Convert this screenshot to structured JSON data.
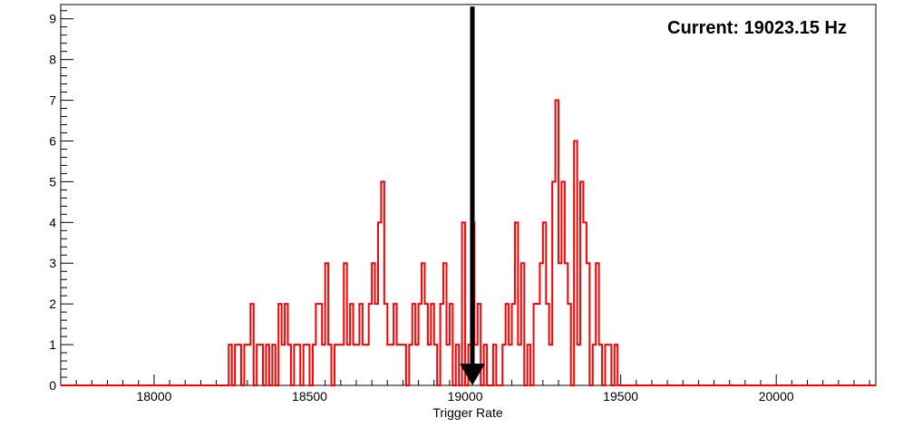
{
  "chart_data": {
    "type": "histogram",
    "title": "",
    "xlabel": "Trigger Rate",
    "ylabel": "",
    "xlim": [
      17700,
      20320
    ],
    "ylim": [
      0,
      9.35
    ],
    "grid": false,
    "legend": "none",
    "x_ticks": [
      18000,
      18500,
      19000,
      19500,
      20000
    ],
    "y_ticks": [
      0,
      1,
      2,
      3,
      4,
      5,
      6,
      7,
      8,
      9
    ],
    "x_minor_step": 50,
    "y_minor_step": 0.2,
    "bin_width": 10,
    "series": [
      {
        "color": "#ff0000",
        "bins": [
          [
            18240,
            1
          ],
          [
            18250,
            0
          ],
          [
            18260,
            1
          ],
          [
            18270,
            1
          ],
          [
            18280,
            0
          ],
          [
            18290,
            1
          ],
          [
            18300,
            1
          ],
          [
            18310,
            2
          ],
          [
            18320,
            0
          ],
          [
            18330,
            1
          ],
          [
            18340,
            1
          ],
          [
            18350,
            0
          ],
          [
            18360,
            1
          ],
          [
            18370,
            0
          ],
          [
            18380,
            1
          ],
          [
            18390,
            0
          ],
          [
            18400,
            2
          ],
          [
            18410,
            1
          ],
          [
            18420,
            2
          ],
          [
            18430,
            1
          ],
          [
            18440,
            0
          ],
          [
            18450,
            1
          ],
          [
            18460,
            1
          ],
          [
            18470,
            0
          ],
          [
            18480,
            1
          ],
          [
            18490,
            1
          ],
          [
            18500,
            0
          ],
          [
            18510,
            1
          ],
          [
            18520,
            2
          ],
          [
            18530,
            2
          ],
          [
            18540,
            1
          ],
          [
            18550,
            3
          ],
          [
            18560,
            1
          ],
          [
            18570,
            0
          ],
          [
            18580,
            1
          ],
          [
            18590,
            1
          ],
          [
            18600,
            1
          ],
          [
            18610,
            3
          ],
          [
            18620,
            1
          ],
          [
            18630,
            2
          ],
          [
            18640,
            1
          ],
          [
            18650,
            1
          ],
          [
            18660,
            2
          ],
          [
            18670,
            1
          ],
          [
            18680,
            1
          ],
          [
            18690,
            2
          ],
          [
            18700,
            3
          ],
          [
            18710,
            2
          ],
          [
            18720,
            4
          ],
          [
            18730,
            5
          ],
          [
            18740,
            2
          ],
          [
            18750,
            1
          ],
          [
            18760,
            1
          ],
          [
            18770,
            2
          ],
          [
            18780,
            1
          ],
          [
            18790,
            1
          ],
          [
            18800,
            1
          ],
          [
            18810,
            0
          ],
          [
            18820,
            1
          ],
          [
            18830,
            2
          ],
          [
            18840,
            1
          ],
          [
            18850,
            2
          ],
          [
            18860,
            3
          ],
          [
            18870,
            2
          ],
          [
            18880,
            1
          ],
          [
            18890,
            2
          ],
          [
            18900,
            1
          ],
          [
            18910,
            0
          ],
          [
            18920,
            2
          ],
          [
            18930,
            3
          ],
          [
            18940,
            1
          ],
          [
            18950,
            2
          ],
          [
            18960,
            0
          ],
          [
            18970,
            1
          ],
          [
            18980,
            0
          ],
          [
            18990,
            4
          ],
          [
            19000,
            0
          ],
          [
            19010,
            1
          ],
          [
            19020,
            4
          ],
          [
            19030,
            1
          ],
          [
            19040,
            2
          ],
          [
            19050,
            0
          ],
          [
            19060,
            1
          ],
          [
            19070,
            0
          ],
          [
            19080,
            0
          ],
          [
            19090,
            1
          ],
          [
            19100,
            0
          ],
          [
            19110,
            0
          ],
          [
            19120,
            1
          ],
          [
            19130,
            2
          ],
          [
            19140,
            1
          ],
          [
            19150,
            2
          ],
          [
            19160,
            4
          ],
          [
            19170,
            1
          ],
          [
            19180,
            3
          ],
          [
            19190,
            0
          ],
          [
            19200,
            1
          ],
          [
            19210,
            0
          ],
          [
            19220,
            2
          ],
          [
            19230,
            2
          ],
          [
            19240,
            3
          ],
          [
            19250,
            4
          ],
          [
            19260,
            2
          ],
          [
            19270,
            1
          ],
          [
            19280,
            5
          ],
          [
            19290,
            7
          ],
          [
            19300,
            3
          ],
          [
            19310,
            5
          ],
          [
            19320,
            3
          ],
          [
            19330,
            2
          ],
          [
            19340,
            0
          ],
          [
            19350,
            6
          ],
          [
            19360,
            1
          ],
          [
            19370,
            5
          ],
          [
            19380,
            4
          ],
          [
            19390,
            3
          ],
          [
            19400,
            0
          ],
          [
            19410,
            1
          ],
          [
            19420,
            3
          ],
          [
            19430,
            1
          ],
          [
            19440,
            0
          ],
          [
            19450,
            1
          ],
          [
            19460,
            1
          ],
          [
            19470,
            0
          ],
          [
            19480,
            1
          ]
        ]
      }
    ],
    "marker": {
      "x": 19023.15,
      "direction": "down",
      "y_from": 9.3,
      "y_to": 0,
      "color": "#000000"
    },
    "annotation": "Current: 19023.15 Hz"
  }
}
